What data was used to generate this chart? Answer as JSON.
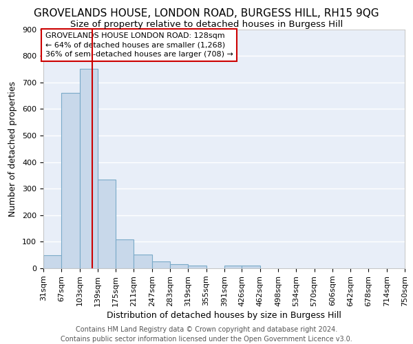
{
  "title1": "GROVELANDS HOUSE, LONDON ROAD, BURGESS HILL, RH15 9QG",
  "title2": "Size of property relative to detached houses in Burgess Hill",
  "xlabel": "Distribution of detached houses by size in Burgess Hill",
  "ylabel": "Number of detached properties",
  "bin_edges": [
    31,
    67,
    103,
    139,
    175,
    211,
    247,
    283,
    319,
    355,
    391,
    426,
    462,
    498,
    534,
    570,
    606,
    642,
    678,
    714,
    750
  ],
  "bar_heights": [
    50,
    660,
    750,
    335,
    108,
    52,
    25,
    15,
    10,
    0,
    10,
    10,
    0,
    0,
    0,
    0,
    0,
    0,
    0,
    0
  ],
  "bar_color": "#c8d8ea",
  "bar_edge_color": "#7aaac8",
  "red_line_x": 128,
  "red_line_color": "#cc0000",
  "ylim": [
    0,
    900
  ],
  "yticks": [
    0,
    100,
    200,
    300,
    400,
    500,
    600,
    700,
    800,
    900
  ],
  "annotation_box_text": "GROVELANDS HOUSE LONDON ROAD: 128sqm\n← 64% of detached houses are smaller (1,268)\n36% of semi-detached houses are larger (708) →",
  "annotation_box_color": "#ffffff",
  "annotation_box_edge_color": "#cc0000",
  "footer_text": "Contains HM Land Registry data © Crown copyright and database right 2024.\nContains public sector information licensed under the Open Government Licence v3.0.",
  "background_color": "#e8eef8",
  "grid_color": "#ffffff",
  "title1_fontsize": 11,
  "title2_fontsize": 9.5,
  "axis_label_fontsize": 9,
  "tick_fontsize": 8,
  "annotation_fontsize": 8,
  "footer_fontsize": 7
}
